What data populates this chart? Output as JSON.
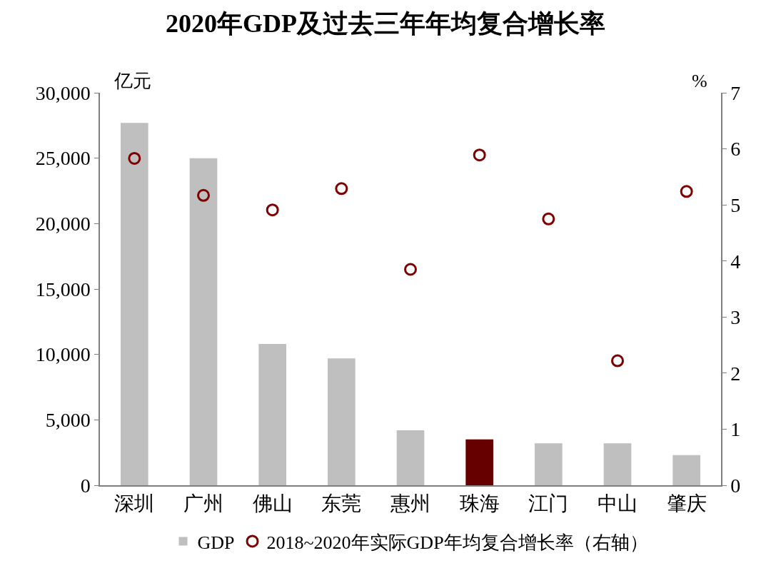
{
  "chart_data": {
    "type": "bar",
    "title": "2020年GDP及过去三年年均复合增长率",
    "ylabel": "亿元",
    "y2label": "%",
    "categories": [
      "深圳",
      "广州",
      "佛山",
      "东莞",
      "惠州",
      "珠海",
      "江门",
      "中山",
      "肇庆"
    ],
    "series": [
      {
        "name": "GDP",
        "color": "#bfbfbf",
        "colors": [
          "#bfbfbf",
          "#bfbfbf",
          "#bfbfbf",
          "#bfbfbf",
          "#bfbfbf",
          "#660000",
          "#bfbfbf",
          "#bfbfbf",
          "#bfbfbf"
        ],
        "values": [
          27700,
          25000,
          10800,
          9700,
          4200,
          3500,
          3200,
          3200,
          2300
        ]
      },
      {
        "name": "2018~2020年实际GDP年均复合增长率（右轴）",
        "type": "scatter",
        "axis": "y2",
        "color": "#7f0000",
        "marker": "circle",
        "values": [
          5.83,
          5.17,
          4.91,
          5.29,
          3.85,
          5.89,
          4.75,
          2.22,
          5.24
        ]
      }
    ],
    "ylim": [
      0,
      30000
    ],
    "yticks": [
      {
        "value": 0,
        "label": "0"
      },
      {
        "value": 5000,
        "label": "5,000"
      },
      {
        "value": 10000,
        "label": "10,000"
      },
      {
        "value": 15000,
        "label": "15,000"
      },
      {
        "value": 20000,
        "label": "20,000"
      },
      {
        "value": 25000,
        "label": "25,000"
      },
      {
        "value": 30000,
        "label": "30,000"
      }
    ],
    "y2lim": [
      0,
      7
    ],
    "y2ticks": [
      0,
      1,
      2,
      3,
      4,
      5,
      6,
      7
    ],
    "grid": false,
    "legend": "bottom"
  }
}
